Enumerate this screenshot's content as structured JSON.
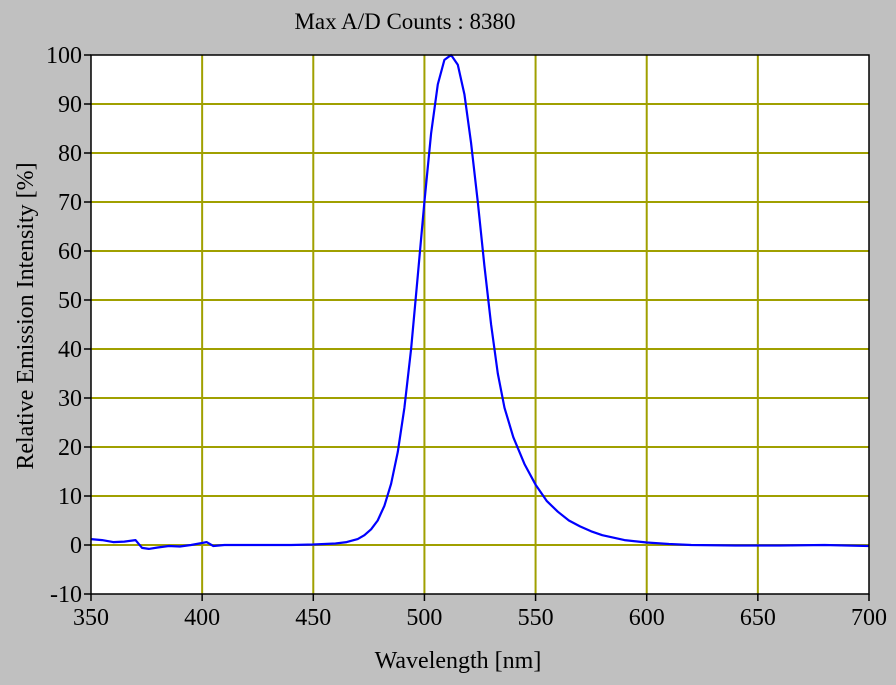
{
  "chart_data": {
    "type": "line",
    "title": "Max A/D Counts : 8380",
    "xlabel": "Wavelength [nm]",
    "ylabel": "Relative Emission Intensity [%]",
    "xlim": [
      350,
      700
    ],
    "ylim": [
      -10,
      100
    ],
    "x_ticks": [
      350,
      400,
      450,
      500,
      550,
      600,
      650,
      700
    ],
    "y_ticks": [
      -10,
      0,
      10,
      20,
      30,
      40,
      50,
      60,
      70,
      80,
      90,
      100
    ],
    "grid": true,
    "colors": {
      "background": "#c0c0c0",
      "plot_area": "#ffffff",
      "grid": "#a0a000",
      "line": "#0000ff"
    },
    "series": [
      {
        "x": [
          350,
          355,
          360,
          365,
          370,
          373,
          376,
          380,
          385,
          390,
          395,
          400,
          402,
          405,
          410,
          420,
          430,
          440,
          450,
          460,
          465,
          470,
          473,
          476,
          479,
          482,
          485,
          488,
          491,
          494,
          497,
          500,
          503,
          506,
          509,
          512,
          515,
          518,
          521,
          524,
          527,
          530,
          533,
          536,
          540,
          545,
          550,
          555,
          560,
          565,
          570,
          575,
          580,
          590,
          600,
          610,
          620,
          640,
          660,
          680,
          700
        ],
        "y": [
          1.2,
          1.0,
          0.6,
          0.7,
          1.0,
          -0.6,
          -0.8,
          -0.5,
          -0.2,
          -0.3,
          0.0,
          0.4,
          0.6,
          -0.2,
          0.0,
          0.0,
          0.0,
          0.0,
          0.1,
          0.3,
          0.6,
          1.2,
          2.0,
          3.2,
          5.0,
          8.0,
          12.5,
          19.0,
          28.0,
          40.0,
          55.0,
          70.0,
          84.0,
          94.0,
          99.0,
          100.0,
          98.0,
          92.0,
          82.0,
          70.0,
          57.0,
          45.0,
          35.0,
          28.0,
          22.0,
          16.5,
          12.3,
          9.0,
          6.8,
          5.0,
          3.8,
          2.8,
          2.0,
          1.0,
          0.5,
          0.2,
          0.0,
          -0.1,
          -0.1,
          0.0,
          -0.2
        ]
      }
    ]
  }
}
